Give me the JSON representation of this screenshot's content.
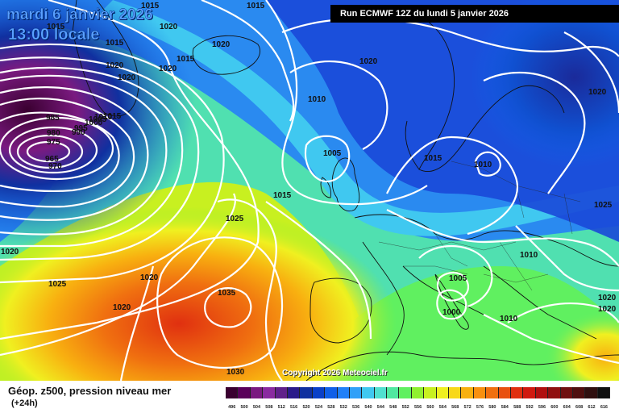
{
  "header": {
    "date": "mardi 6 janvier 2026",
    "time": "13:00 locale",
    "run": "Run ECMWF 12Z du lundi 5 janvier 2026"
  },
  "copyright": "Copyright 2026 Meteociel.fr",
  "legend": {
    "title": "Géop. z500, pression niveau mer",
    "subtitle": "(+24h)",
    "values": [
      "496",
      "500",
      "504",
      "508",
      "512",
      "516",
      "520",
      "524",
      "528",
      "532",
      "536",
      "540",
      "544",
      "548",
      "552",
      "556",
      "560",
      "564",
      "568",
      "572",
      "576",
      "580",
      "584",
      "588",
      "592",
      "596",
      "600",
      "604",
      "608",
      "612",
      "616"
    ],
    "colors": [
      "#3a0030",
      "#5a005a",
      "#7a1a80",
      "#8a2aa0",
      "#60208a",
      "#2a1a8a",
      "#1030a0",
      "#0a40c8",
      "#1060e8",
      "#2080f8",
      "#30a0f8",
      "#40c8f0",
      "#50e0d0",
      "#50e8a0",
      "#60f060",
      "#90f030",
      "#c8f020",
      "#f0f020",
      "#f8d818",
      "#f8b010",
      "#f89010",
      "#f07010",
      "#e85010",
      "#e03010",
      "#d01a10",
      "#b01010",
      "#901010",
      "#701010",
      "#501010",
      "#301010",
      "#101010"
    ]
  },
  "map": {
    "pressure_labels": [
      {
        "text": "1015"
      },
      {
        "text": "1015"
      },
      {
        "text": "1020"
      },
      {
        "text": "1015"
      },
      {
        "text": "1015"
      },
      {
        "text": "1020"
      },
      {
        "text": "1020"
      },
      {
        "text": "1020"
      },
      {
        "text": "1015"
      },
      {
        "text": "1020"
      },
      {
        "text": "1010"
      },
      {
        "text": "1020"
      },
      {
        "text": "985"
      },
      {
        "text": "980"
      },
      {
        "text": "975"
      },
      {
        "text": "995"
      },
      {
        "text": "990"
      },
      {
        "text": "1000"
      },
      {
        "text": "1005"
      },
      {
        "text": "1010"
      },
      {
        "text": "1015"
      },
      {
        "text": "965"
      },
      {
        "text": "970"
      },
      {
        "text": "1005"
      },
      {
        "text": "1015"
      },
      {
        "text": "1010"
      },
      {
        "text": "1015"
      },
      {
        "text": "1025"
      },
      {
        "text": "1025"
      },
      {
        "text": "1020"
      },
      {
        "text": "1010"
      },
      {
        "text": "1005"
      },
      {
        "text": "1020"
      },
      {
        "text": "1035"
      },
      {
        "text": "1025"
      },
      {
        "text": "1000"
      },
      {
        "text": "1020"
      },
      {
        "text": "1010"
      },
      {
        "text": "1020"
      },
      {
        "text": "1030"
      },
      {
        "text": "1020"
      }
    ]
  }
}
